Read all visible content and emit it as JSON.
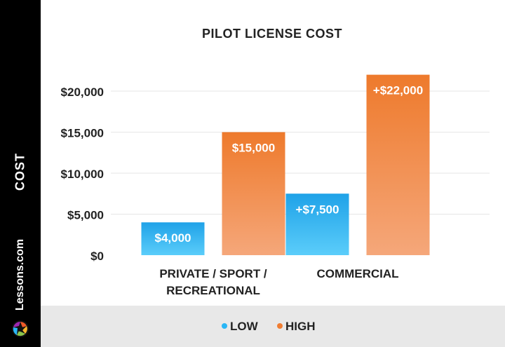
{
  "chart_data": {
    "type": "bar",
    "title": "PILOT LICENSE COST",
    "ylabel": "COST",
    "categories": [
      "PRIVATE / SPORT /\nRECREATIONAL",
      "COMMERCIAL"
    ],
    "series": [
      {
        "name": "LOW",
        "color": "#29b6f6",
        "values": [
          4000,
          7500
        ],
        "labels": [
          "$4,000",
          "+$7,500"
        ]
      },
      {
        "name": "HIGH",
        "color": "#f07d32",
        "values": [
          15000,
          22000
        ],
        "labels": [
          "$15,000",
          "+$22,000"
        ]
      }
    ],
    "ylim": [
      0,
      22000
    ],
    "yticks": [
      0,
      5000,
      10000,
      15000,
      20000
    ],
    "ytick_labels": [
      "$0",
      "$5,000",
      "$10,000",
      "$15,000",
      "$20,000"
    ],
    "grid": true,
    "legend_position": "bottom"
  },
  "brand": {
    "text": "Lessons.com",
    "logo_icon": "camera-aperture-icon"
  }
}
